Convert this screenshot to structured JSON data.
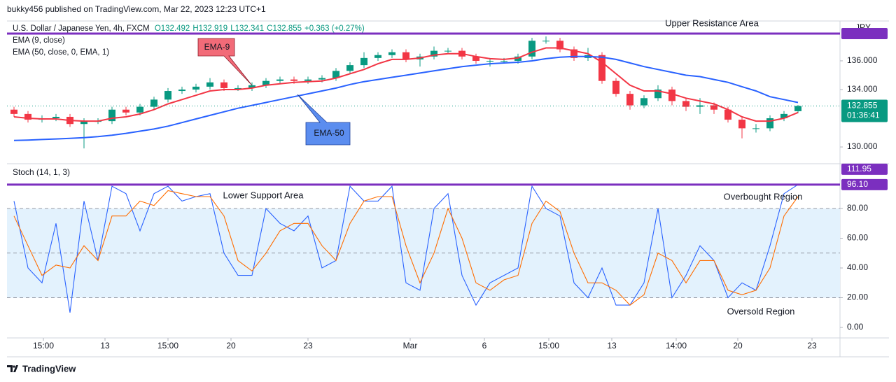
{
  "header": {
    "byline": "bukky456 published on TradingView.com, Mar 22, 2023 12:23 UTC+1"
  },
  "footer": {
    "brand": "TradingView"
  },
  "chart_data": [
    {
      "type": "candlestick",
      "title": "U.S. Dollar / Japanese Yen, 4h, FXCM",
      "ohlc_text": [
        "O132.492",
        "H132.919",
        "L132.341",
        "C132.855",
        "+0.363 (+0.27%)"
      ],
      "axis_unit": "JPY",
      "countdown": "01:36:41",
      "x": [
        0,
        1,
        2,
        3,
        4,
        5,
        6,
        7,
        8,
        9,
        10,
        11,
        12,
        13,
        14,
        15,
        16,
        17,
        18,
        19,
        20,
        21,
        22,
        23,
        24,
        25,
        26,
        27,
        28,
        29,
        30,
        31,
        32,
        33,
        34,
        35,
        36,
        37,
        38,
        39,
        40,
        41,
        42,
        43,
        44,
        45,
        46,
        47,
        48,
        49,
        50,
        51,
        52,
        53,
        54,
        55,
        56
      ],
      "open": [
        132.6,
        132.3,
        131.9,
        132.0,
        132.1,
        131.6,
        131.8,
        131.8,
        132.6,
        132.4,
        132.8,
        133.3,
        133.9,
        134.0,
        134.2,
        134.5,
        134.1,
        134.1,
        134.3,
        134.6,
        134.7,
        134.6,
        134.7,
        134.8,
        135.3,
        135.7,
        136.2,
        136.4,
        136.6,
        136.1,
        136.3,
        136.7,
        136.7,
        136.3,
        136.0,
        136.0,
        136.0,
        136.3,
        137.4,
        137.4,
        136.8,
        136.2,
        136.4,
        134.6,
        133.7,
        132.9,
        133.4,
        134.0,
        133.2,
        132.8,
        132.9,
        132.6,
        131.9,
        131.3,
        131.3,
        132.0,
        132.492
      ],
      "high": [
        132.8,
        132.5,
        132.2,
        132.3,
        132.3,
        132.0,
        132.0,
        132.8,
        132.8,
        133.0,
        133.5,
        134.1,
        134.2,
        134.4,
        134.8,
        134.7,
        134.3,
        134.5,
        134.8,
        134.9,
        134.9,
        134.9,
        135.0,
        135.5,
        135.9,
        136.6,
        136.6,
        136.8,
        136.8,
        136.5,
        137.0,
        136.9,
        136.9,
        136.5,
        136.2,
        136.2,
        136.5,
        137.6,
        137.7,
        137.6,
        137.0,
        136.9,
        136.6,
        134.8,
        133.9,
        133.6,
        134.3,
        134.2,
        133.4,
        133.4,
        133.1,
        132.8,
        132.1,
        131.6,
        132.2,
        132.5,
        132.919
      ],
      "low": [
        132.1,
        131.7,
        131.7,
        131.8,
        131.4,
        129.9,
        131.6,
        131.6,
        132.2,
        132.2,
        132.6,
        133.1,
        133.7,
        133.8,
        134.0,
        133.9,
        133.9,
        133.9,
        134.1,
        134.4,
        134.4,
        134.4,
        134.5,
        134.6,
        135.1,
        135.5,
        136.0,
        136.2,
        135.9,
        135.6,
        136.1,
        136.5,
        136.1,
        135.8,
        135.6,
        135.8,
        135.8,
        136.1,
        137.2,
        136.6,
        136.0,
        136.0,
        134.4,
        133.5,
        132.6,
        132.7,
        133.2,
        132.9,
        132.5,
        132.3,
        132.3,
        131.7,
        130.6,
        131.0,
        131.1,
        131.8,
        132.341
      ],
      "close": [
        132.3,
        131.9,
        132.0,
        132.1,
        131.6,
        131.8,
        131.8,
        132.6,
        132.4,
        132.8,
        133.3,
        133.9,
        134.0,
        134.2,
        134.5,
        134.1,
        134.1,
        134.3,
        134.6,
        134.7,
        134.6,
        134.7,
        134.8,
        135.3,
        135.7,
        136.2,
        136.4,
        136.6,
        136.1,
        136.3,
        136.7,
        136.7,
        136.3,
        136.0,
        136.0,
        136.0,
        136.3,
        137.4,
        137.4,
        136.8,
        136.2,
        136.4,
        134.6,
        133.7,
        132.9,
        133.4,
        134.0,
        133.2,
        132.8,
        132.9,
        132.6,
        131.9,
        131.3,
        131.3,
        132.0,
        132.3,
        132.855
      ],
      "up_color": "#089981",
      "down_color": "#f23645",
      "series": [
        {
          "name": "EMA (9, close)",
          "color": "#f23645",
          "values": [
            132.1,
            132.0,
            131.95,
            131.95,
            131.85,
            131.8,
            131.8,
            132.0,
            132.1,
            132.3,
            132.6,
            133.0,
            133.3,
            133.6,
            133.9,
            134.0,
            134.0,
            134.1,
            134.3,
            134.4,
            134.5,
            134.55,
            134.6,
            134.8,
            135.1,
            135.4,
            135.8,
            136.1,
            136.1,
            136.2,
            136.4,
            136.5,
            136.5,
            136.3,
            136.15,
            136.1,
            136.2,
            136.6,
            136.9,
            136.9,
            136.7,
            136.5,
            135.9,
            135.1,
            134.3,
            133.9,
            133.9,
            133.7,
            133.4,
            133.2,
            133.0,
            132.6,
            132.1,
            131.8,
            131.8,
            132.0,
            132.4
          ]
        },
        {
          "name": "EMA (50, close, 0, EMA, 1)",
          "color": "#2962ff",
          "values": [
            130.45,
            130.48,
            130.52,
            130.56,
            130.6,
            130.65,
            130.72,
            130.82,
            130.95,
            131.1,
            131.25,
            131.45,
            131.7,
            131.95,
            132.2,
            132.45,
            132.7,
            132.9,
            133.1,
            133.3,
            133.5,
            133.7,
            133.9,
            134.1,
            134.35,
            134.55,
            134.7,
            134.85,
            135.0,
            135.15,
            135.3,
            135.45,
            135.6,
            135.7,
            135.8,
            135.85,
            135.9,
            136.0,
            136.15,
            136.25,
            136.3,
            136.3,
            136.25,
            136.1,
            135.85,
            135.6,
            135.4,
            135.2,
            135.0,
            134.9,
            134.7,
            134.5,
            134.2,
            133.9,
            133.5,
            133.3,
            133.1
          ]
        }
      ],
      "hline": {
        "value": 137.9,
        "label": "Upper Resistance Area",
        "color": "#7b2fbf"
      },
      "annotations": [
        {
          "text": "EMA-9",
          "color": "#f26b78"
        },
        {
          "text": "EMA-50",
          "color": "#5b8def"
        }
      ],
      "xlim": [
        -0.5,
        59
      ],
      "ylim": [
        128.93,
        138.63
      ],
      "yticks": [
        {
          "value": 130,
          "label": "130.000"
        },
        {
          "value": 134,
          "label": "134.000"
        },
        {
          "value": 136,
          "label": "136.000"
        }
      ]
    },
    {
      "type": "line",
      "title": "Stoch (14, 1, 3)",
      "x": [
        0,
        1,
        2,
        3,
        4,
        5,
        6,
        7,
        8,
        9,
        10,
        11,
        12,
        13,
        14,
        15,
        16,
        17,
        18,
        19,
        20,
        21,
        22,
        23,
        24,
        25,
        26,
        27,
        28,
        29,
        30,
        31,
        32,
        33,
        34,
        35,
        36,
        37,
        38,
        39,
        40,
        41,
        42,
        43,
        44,
        45,
        46,
        47,
        48,
        49,
        50,
        51,
        52,
        53,
        54,
        55,
        56
      ],
      "series": [
        {
          "color": "#2962ff",
          "values": [
            85,
            40,
            30,
            70,
            10,
            85,
            45,
            95,
            90,
            65,
            90,
            95,
            85,
            88,
            90,
            50,
            35,
            35,
            80,
            70,
            65,
            75,
            40,
            45,
            95,
            85,
            85,
            95,
            30,
            25,
            80,
            90,
            35,
            15,
            30,
            35,
            40,
            95,
            80,
            75,
            30,
            20,
            40,
            15,
            15,
            30,
            80,
            20,
            35,
            55,
            45,
            20,
            30,
            25,
            55,
            90,
            96.1
          ]
        },
        {
          "color": "#ff6d00",
          "values": [
            75,
            55,
            35,
            42,
            40,
            55,
            45,
            75,
            75,
            85,
            82,
            92,
            90,
            88,
            88,
            75,
            45,
            38,
            50,
            65,
            70,
            70,
            55,
            45,
            70,
            85,
            88,
            88,
            55,
            30,
            50,
            80,
            60,
            30,
            25,
            32,
            35,
            70,
            85,
            78,
            50,
            30,
            30,
            25,
            15,
            22,
            50,
            45,
            30,
            45,
            45,
            25,
            22,
            25,
            40,
            75,
            88
          ]
        }
      ],
      "band": [
        20,
        80
      ],
      "band_color": "#e3f2fd",
      "dashed_levels": [
        20,
        50,
        80
      ],
      "hline": {
        "value": 96.1,
        "value_label": "96.10",
        "label": "Lower Support Area",
        "color": "#7b2fbf"
      },
      "scale_tag": "111.95",
      "annotations": [
        {
          "text": "Overbought Region"
        },
        {
          "text": "Oversold Region"
        }
      ],
      "xlim": [
        -0.5,
        59
      ],
      "ylim": [
        -7.06,
        109.2
      ],
      "yticks": [
        {
          "value": 0,
          "label": "0.00"
        },
        {
          "value": 20,
          "label": "20.00"
        },
        {
          "value": 40,
          "label": "40.00"
        },
        {
          "value": 60,
          "label": "60.00"
        },
        {
          "value": 80,
          "label": "80.00"
        }
      ],
      "xticks": [
        {
          "value": 2.1,
          "label": "15:00"
        },
        {
          "value": 6.5,
          "label": "13"
        },
        {
          "value": 11,
          "label": "15:00"
        },
        {
          "value": 15.5,
          "label": "20"
        },
        {
          "value": 21,
          "label": "23"
        },
        {
          "value": 28.3,
          "label": "Mar"
        },
        {
          "value": 33.6,
          "label": "6"
        },
        {
          "value": 38.2,
          "label": "15:00"
        },
        {
          "value": 42.7,
          "label": "13"
        },
        {
          "value": 47.3,
          "label": "14:00"
        },
        {
          "value": 51.7,
          "label": "20"
        },
        {
          "value": 57,
          "label": "23"
        }
      ]
    }
  ]
}
